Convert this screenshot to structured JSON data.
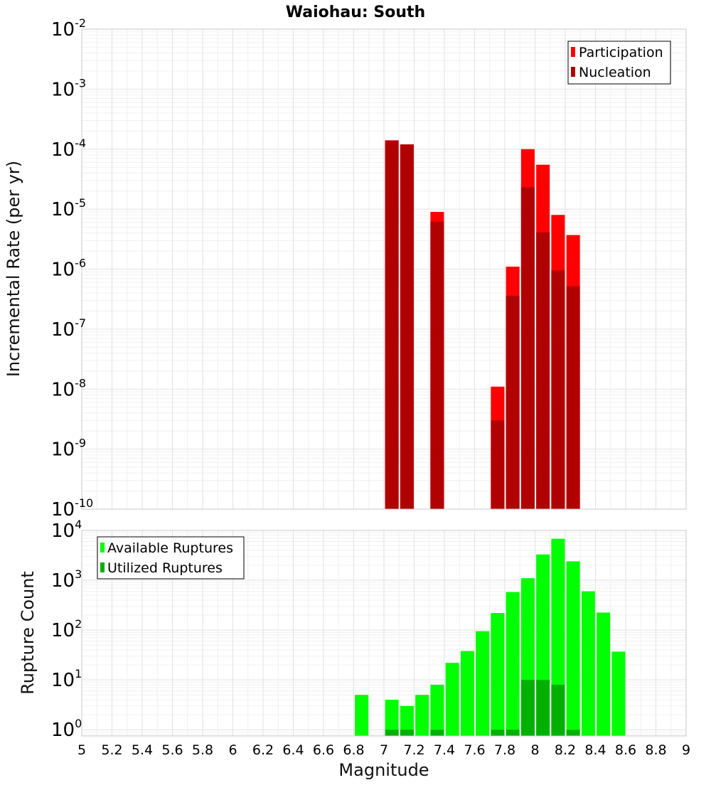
{
  "chart_data": [
    {
      "type": "bar",
      "title": "Waiohau: South",
      "xlabel": "",
      "ylabel": "Incremental Rate (per yr)",
      "yscale": "log",
      "xlim": [
        5,
        9
      ],
      "ylim": [
        1e-10,
        0.01
      ],
      "grid": true,
      "legend_position": "top-right",
      "y_ticks": [
        {
          "base": "10",
          "exp": "-2"
        },
        {
          "base": "10",
          "exp": "-3"
        },
        {
          "base": "10",
          "exp": "-4"
        },
        {
          "base": "10",
          "exp": "-5"
        },
        {
          "base": "10",
          "exp": "-6"
        },
        {
          "base": "10",
          "exp": "-7"
        },
        {
          "base": "10",
          "exp": "-8"
        },
        {
          "base": "10",
          "exp": "-9"
        },
        {
          "base": "10",
          "exp": "-10"
        }
      ],
      "series": [
        {
          "name": "Participation",
          "color": "#ff0000",
          "x": [
            7.05,
            7.15,
            7.35,
            7.75,
            7.85,
            7.95,
            8.05,
            8.15,
            8.25
          ],
          "values": [
            0.00014,
            0.00012,
            9e-06,
            1.1e-08,
            1.1e-06,
            0.0001,
            5.5e-05,
            8e-06,
            3.7e-06
          ]
        },
        {
          "name": "Nucleation",
          "color": "#b10000",
          "x": [
            7.05,
            7.15,
            7.35,
            7.75,
            7.85,
            7.95,
            8.05,
            8.15,
            8.25
          ],
          "values": [
            0.00014,
            0.00012,
            6.2e-06,
            3e-09,
            3.6e-07,
            2.3e-05,
            4.1e-06,
            9.5e-07,
            5.2e-07
          ]
        }
      ]
    },
    {
      "type": "bar",
      "xlabel": "Magnitude",
      "ylabel": "Rupture Count",
      "yscale": "log",
      "xlim": [
        5,
        9
      ],
      "ylim": [
        0.75,
        10000
      ],
      "grid": true,
      "legend_position": "top-left",
      "y_ticks": [
        {
          "base": "10",
          "exp": "4"
        },
        {
          "base": "10",
          "exp": "3"
        },
        {
          "base": "10",
          "exp": "2"
        },
        {
          "base": "10",
          "exp": "1"
        },
        {
          "base": "10",
          "exp": "0"
        }
      ],
      "x_ticks": [
        "5",
        "5.2",
        "5.4",
        "5.6",
        "5.8",
        "6",
        "6.2",
        "6.4",
        "6.6",
        "6.8",
        "7",
        "7.2",
        "7.4",
        "7.6",
        "7.8",
        "8",
        "8.2",
        "8.4",
        "8.6",
        "8.8",
        "9"
      ],
      "series": [
        {
          "name": "Available Ruptures",
          "color": "#00ff00",
          "x": [
            6.85,
            7.05,
            7.15,
            7.25,
            7.35,
            7.45,
            7.55,
            7.65,
            7.75,
            7.85,
            7.95,
            8.05,
            8.15,
            8.25,
            8.35,
            8.45,
            8.55
          ],
          "values": [
            5,
            4,
            3,
            5,
            8,
            22,
            38,
            95,
            220,
            580,
            1100,
            3300,
            6800,
            2400,
            600,
            225,
            37
          ]
        },
        {
          "name": "Utilized Ruptures",
          "color": "#00b000",
          "x": [
            7.05,
            7.15,
            7.35,
            7.75,
            7.85,
            7.95,
            8.05,
            8.15,
            8.25
          ],
          "values": [
            1,
            1,
            1,
            1,
            1,
            10,
            10,
            8,
            1
          ]
        }
      ]
    }
  ]
}
